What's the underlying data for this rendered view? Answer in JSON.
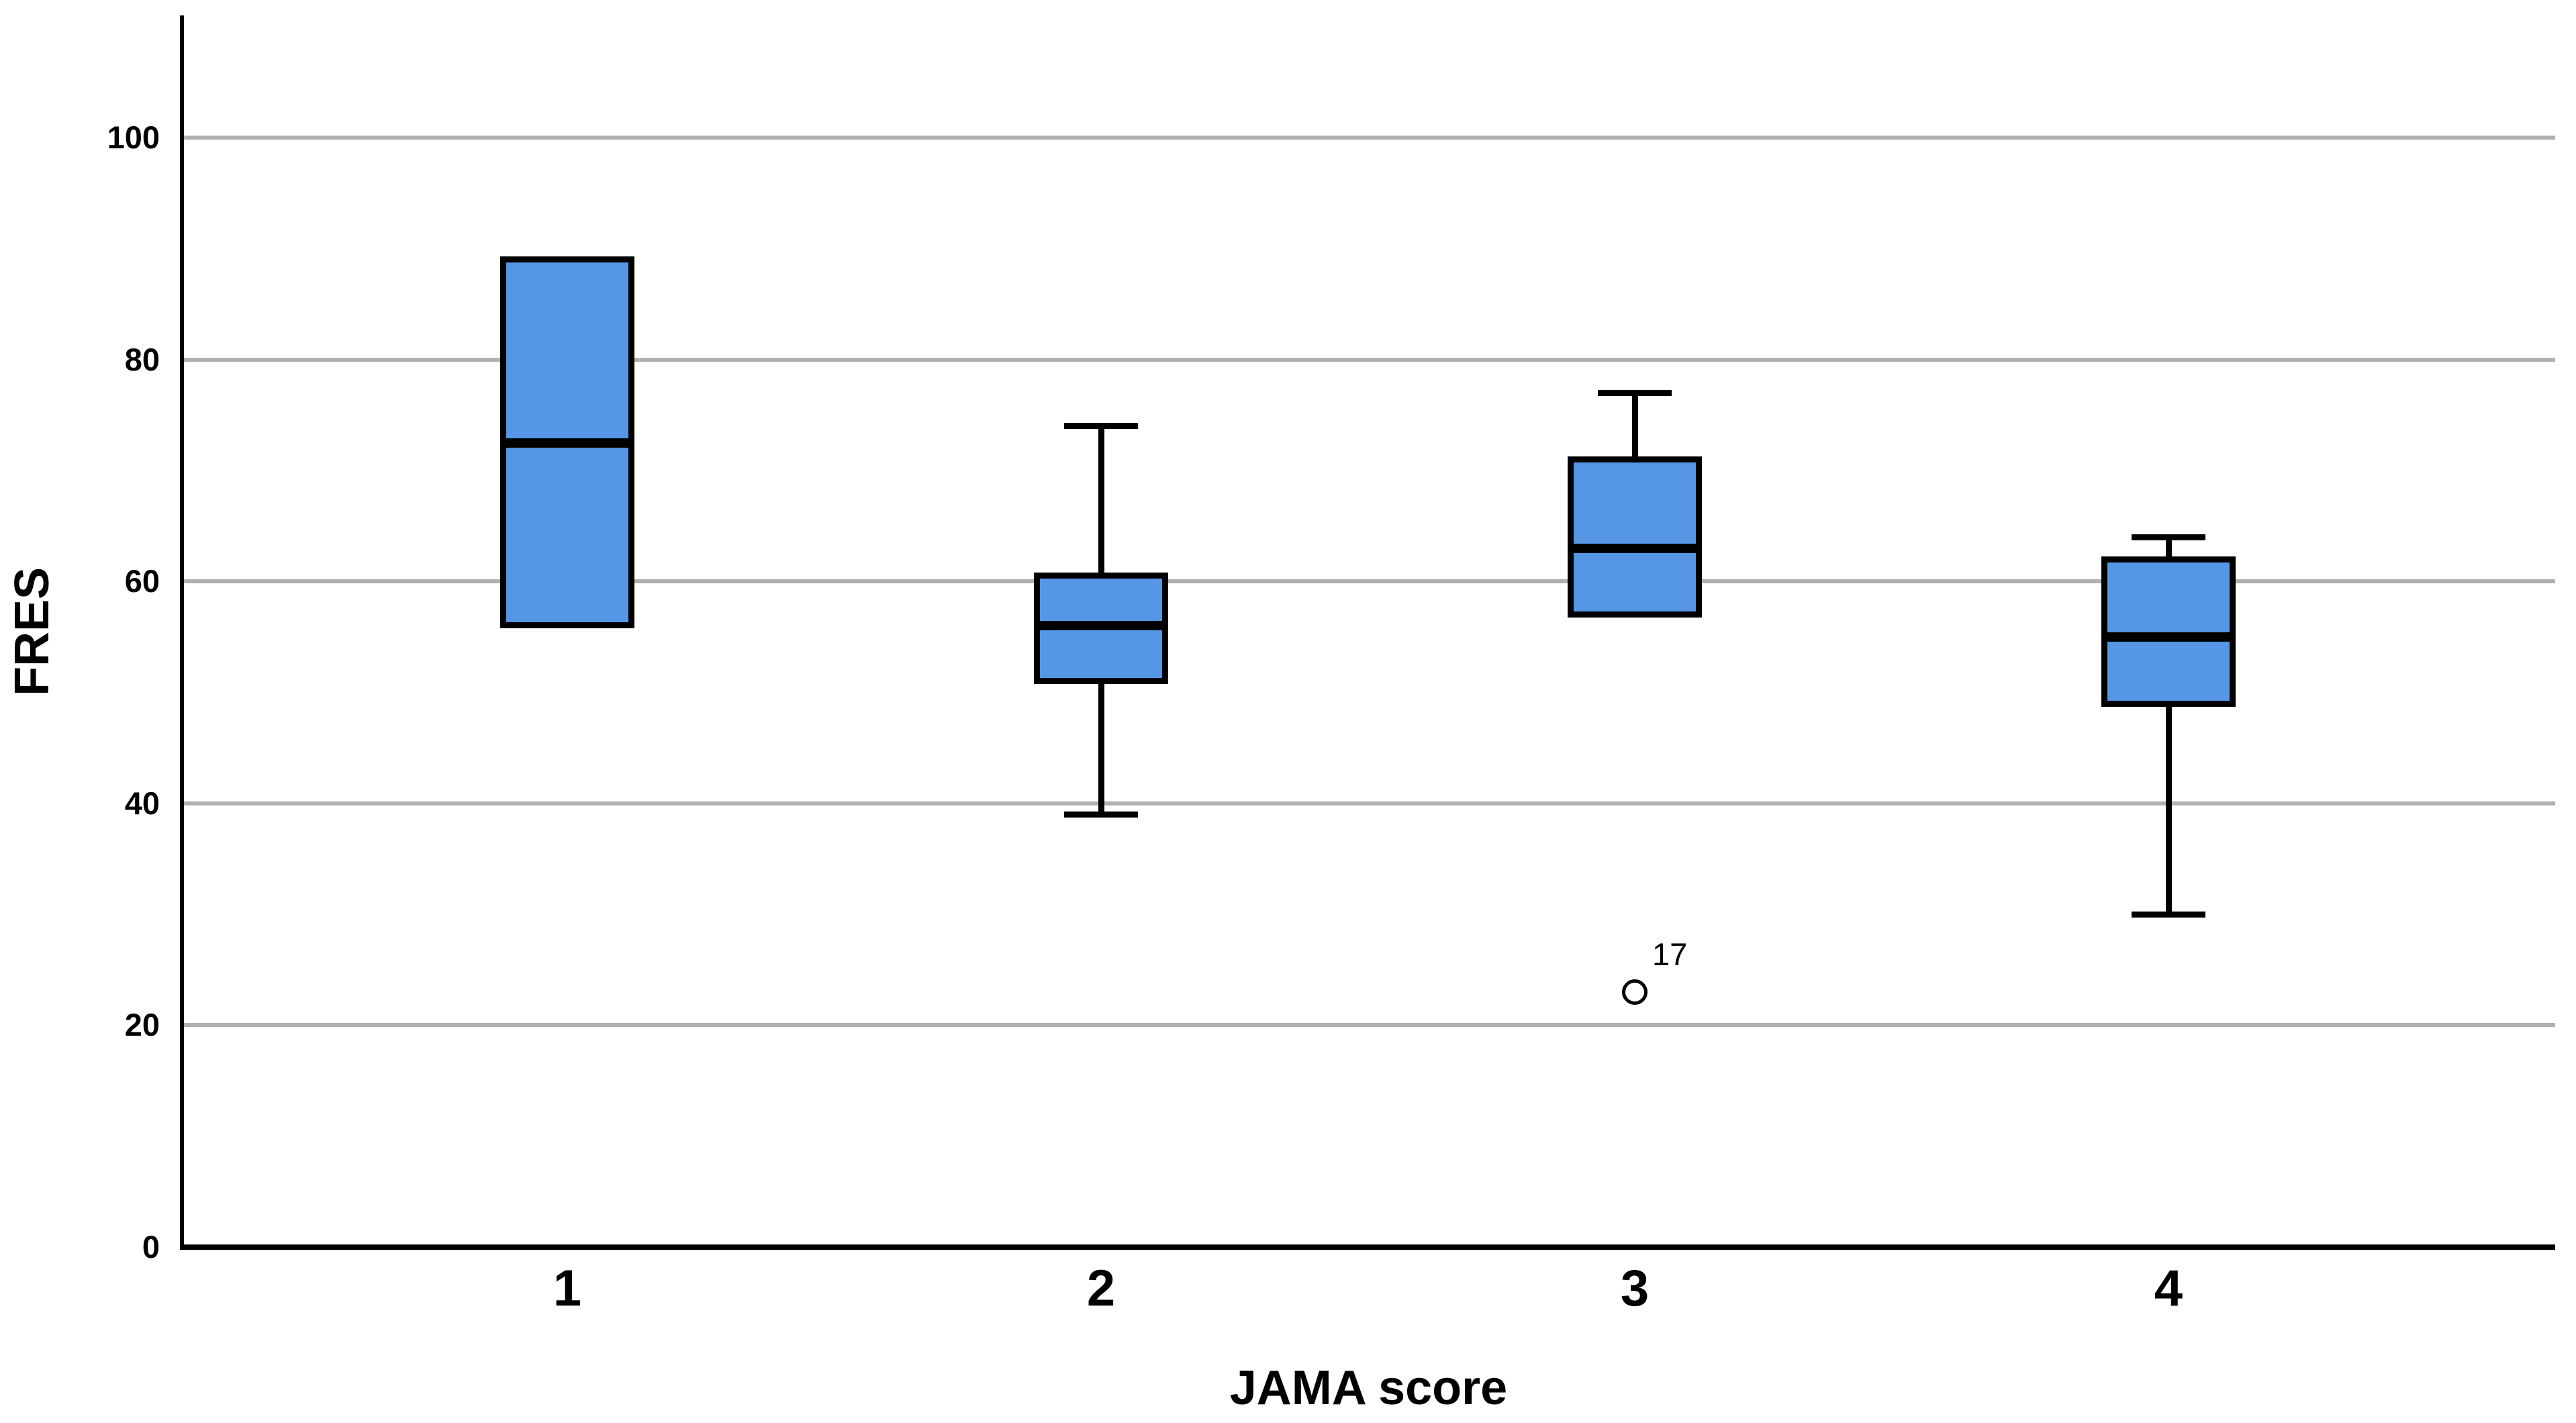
{
  "figure": {
    "background": "#ffffff",
    "box_fill": "#5596E5",
    "gridline_color": "#b0b0b0",
    "axis_color": "#000000"
  },
  "chart_data": {
    "type": "box",
    "title": "",
    "xlabel": "JAMA score",
    "ylabel": "FRES",
    "categories": [
      "1",
      "2",
      "3",
      "4"
    ],
    "y_ticks": [
      0,
      20,
      40,
      60,
      80,
      100
    ],
    "ylim": [
      0,
      110
    ],
    "grid": "horizontal-gray-lines",
    "legend": "none",
    "series": [
      {
        "category": "1",
        "q1": 56,
        "median": 72.5,
        "q3": 89,
        "whisker_low": null,
        "whisker_high": null,
        "outliers": []
      },
      {
        "category": "2",
        "q1": 51,
        "median": 56,
        "q3": 60.5,
        "whisker_low": 39,
        "whisker_high": 74,
        "outliers": []
      },
      {
        "category": "3",
        "q1": 57,
        "median": 63,
        "q3": 71,
        "whisker_low": null,
        "whisker_high": 77,
        "outliers": [
          {
            "value": 23,
            "label": "17"
          }
        ]
      },
      {
        "category": "4",
        "q1": 49,
        "median": 55,
        "q3": 62,
        "whisker_low": 30,
        "whisker_high": 64,
        "outliers": []
      }
    ]
  }
}
